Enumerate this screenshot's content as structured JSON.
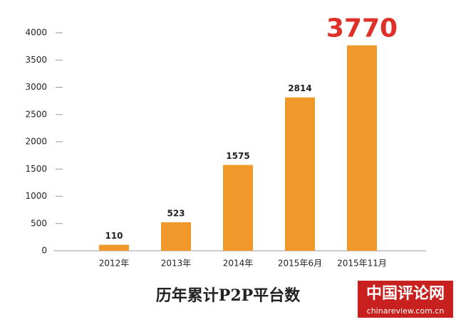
{
  "chart_data": {
    "type": "bar",
    "title": "历年累计P2P平台数",
    "categories": [
      "2012年",
      "2013年",
      "2014年",
      "2015年6月",
      "2015年11月"
    ],
    "values": [
      110,
      523,
      1575,
      2814,
      3770
    ],
    "color": "#f0992a",
    "value_label_colors": [
      "#222222",
      "#222222",
      "#222222",
      "#222222",
      "#e0302a"
    ],
    "ylim": [
      0,
      4000
    ],
    "yticks": [
      0,
      500,
      1000,
      1500,
      2000,
      2500,
      3000,
      3500,
      4000
    ],
    "grid": false
  },
  "watermark": {
    "title": "中国评论网",
    "url": "chinareview.com.cn"
  }
}
